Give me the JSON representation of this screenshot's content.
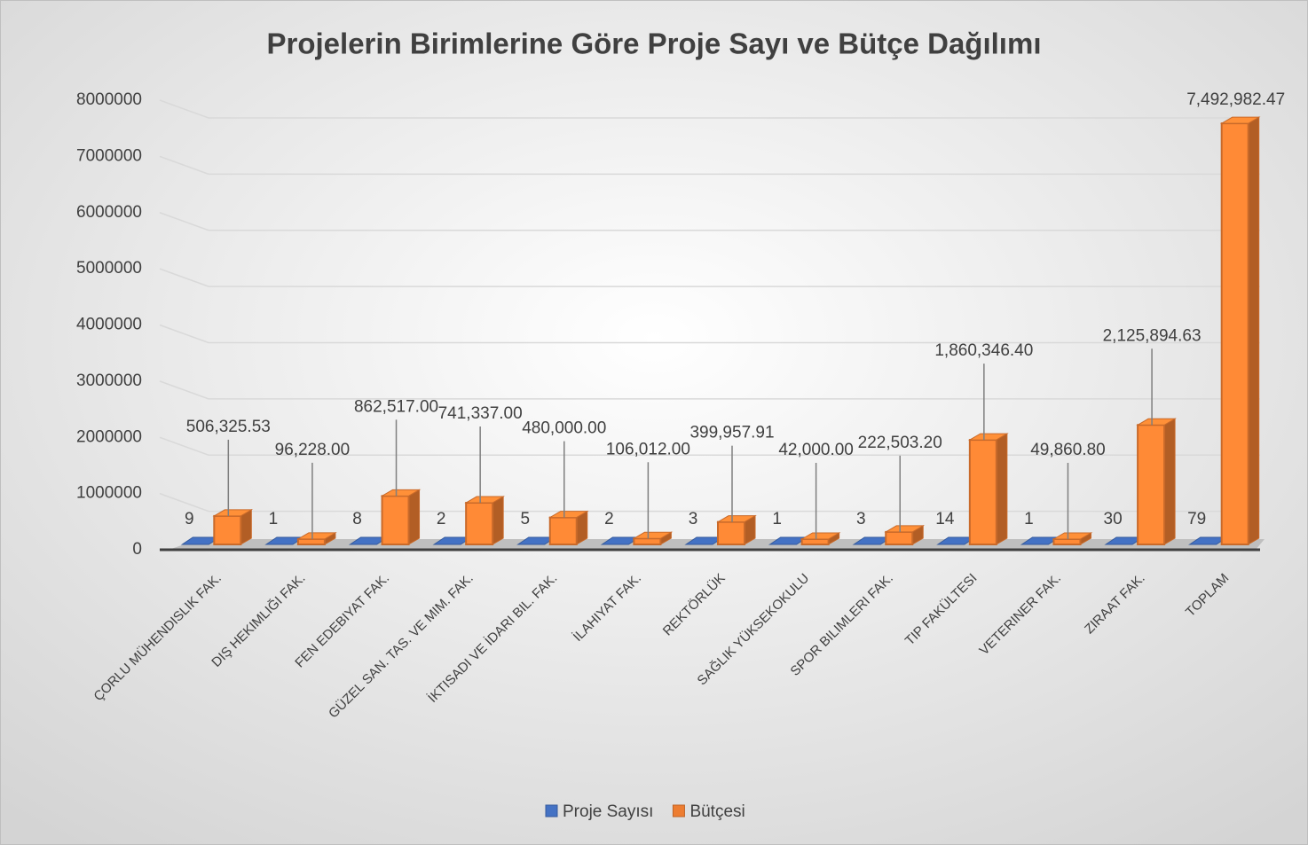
{
  "chart_data": {
    "type": "bar3d",
    "title": "Projelerin Birimlerine Göre Proje Sayı ve Bütçe Dağılımı",
    "categories": [
      "ÇORLU MÜHENDISLIK FAK.",
      "DIŞ HEKIMLIĞI FAK.",
      "FEN EDEBIYAT FAK.",
      "GÜZEL SAN. TAS. VE MIM. FAK.",
      "İKTISADI VE İDARI BIL. FAK.",
      "İLAHIYAT FAK.",
      "REKTÖRLÜK",
      "SAĞLIK YÜKSEKOKULU",
      "SPOR BILIMLERI FAK.",
      "TIP FAKÜLTESI",
      "VETERINER FAK.",
      "ZIRAAT FAK.",
      "TOPLAM"
    ],
    "series": [
      {
        "name": "Proje Sayısı",
        "color": "#4472c4",
        "values": [
          9,
          1,
          8,
          2,
          5,
          2,
          3,
          1,
          3,
          14,
          1,
          30,
          79
        ]
      },
      {
        "name": "Bütçesi",
        "color": "#ed7d31",
        "values": [
          506325.53,
          96228.0,
          862517.0,
          741337.0,
          480000.0,
          106012.0,
          399957.91,
          42000.0,
          222503.2,
          1860346.4,
          49860.8,
          2125894.63,
          7492982.47
        ],
        "value_labels": [
          "506,325.53",
          "96,228.00",
          "862,517.00",
          "741,337.00",
          "480,000.00",
          "106,012.00",
          "399,957.91",
          "42,000.00",
          "222,503.20",
          "1,860,346.40",
          "49,860.80",
          "2,125,894.63",
          "7,492,982.47"
        ]
      }
    ],
    "ylim": [
      0,
      8000000
    ],
    "yticks": [
      0,
      1000000,
      2000000,
      3000000,
      4000000,
      5000000,
      6000000,
      7000000,
      8000000
    ],
    "grid": true,
    "legend": "bottom"
  }
}
